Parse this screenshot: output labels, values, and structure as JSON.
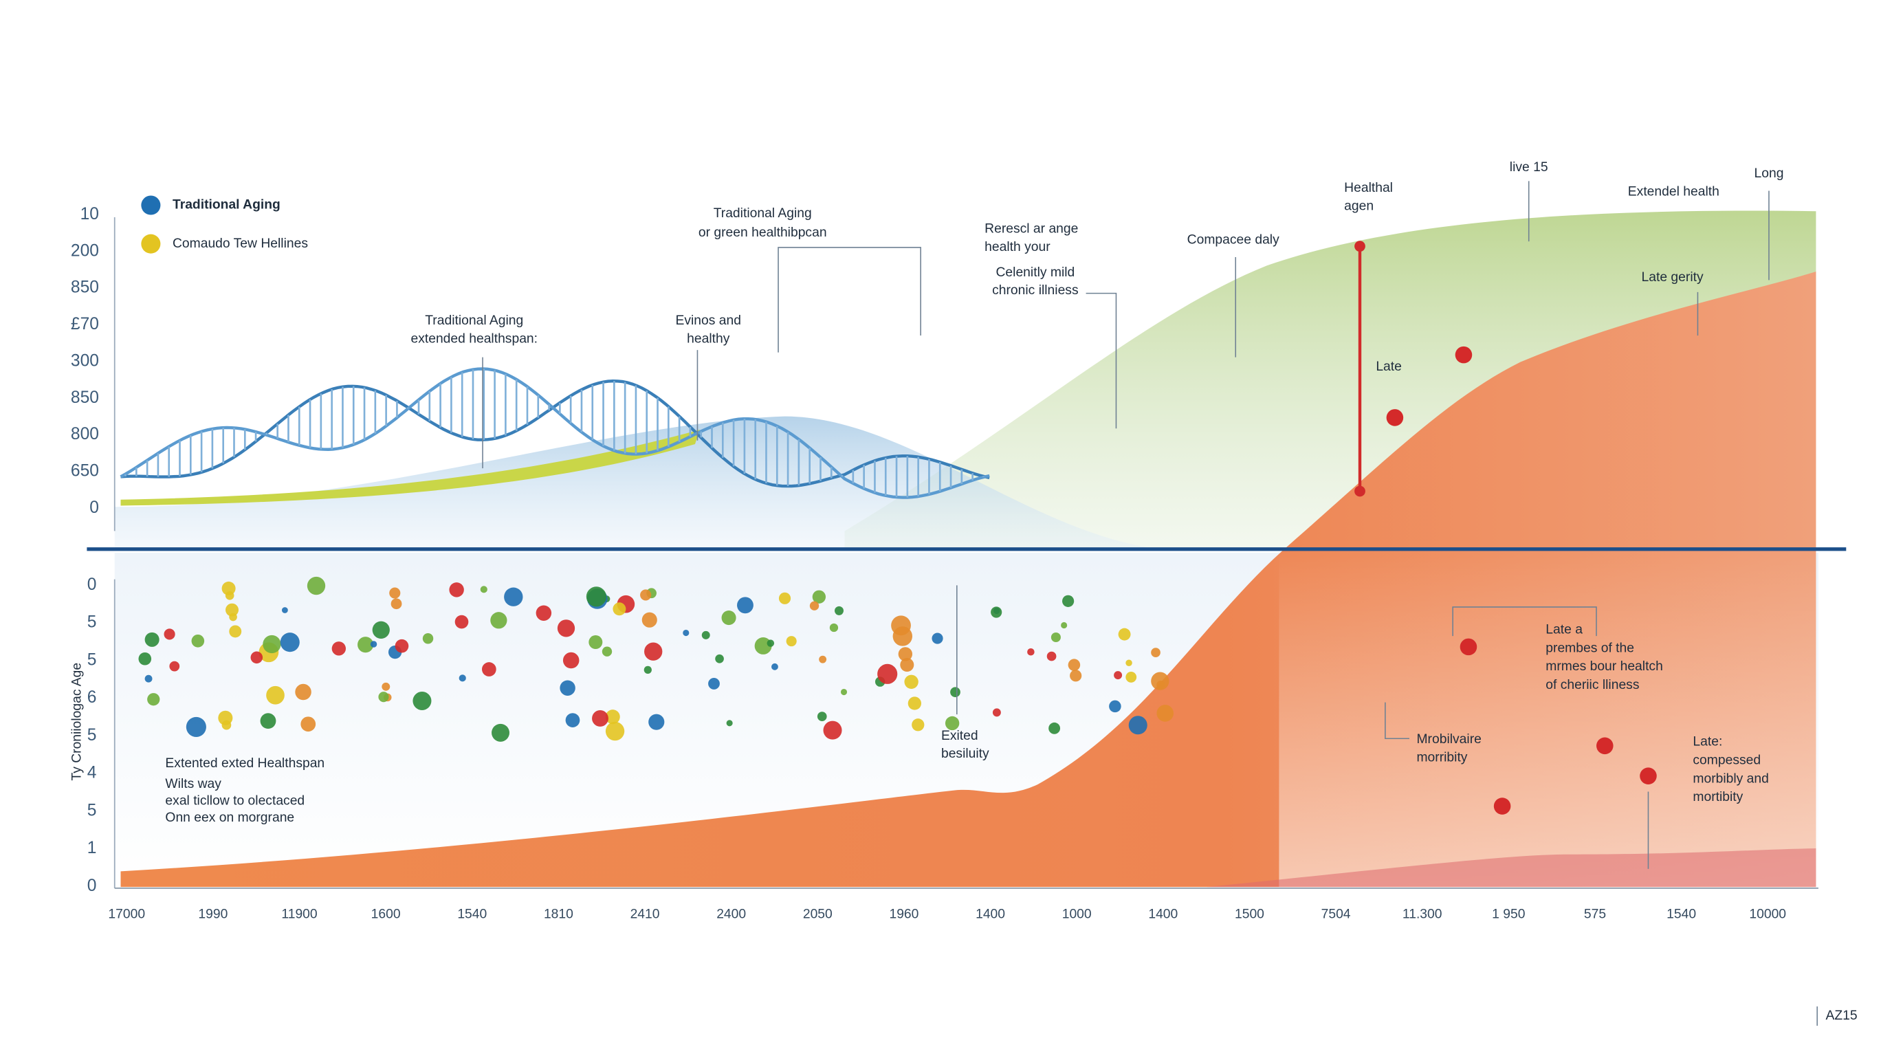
{
  "legend": [
    {
      "label": "Traditional Aging",
      "color": "#1f6fb2"
    },
    {
      "label": "Comaudo Tew Hellines",
      "color": "#e3c421"
    }
  ],
  "top_axis_ticks": [
    "10",
    "200",
    "850",
    "£70",
    "300",
    "850",
    "800",
    "650",
    "0"
  ],
  "bottom_axis_ticks": [
    "0",
    "5",
    "5",
    "6",
    "5",
    "4",
    "5",
    "1",
    "0"
  ],
  "y_axis_title": "Ty Croniiologac Age",
  "x_axis_ticks": [
    "17000",
    "1990",
    "11900",
    "1600",
    "1540",
    "1810",
    "2410",
    "2400",
    "2050",
    "1960",
    "1400",
    "1000",
    "1400",
    "1500",
    "7504",
    "11.300",
    "1 950",
    "575",
    "1540",
    "10000"
  ],
  "annotations": [
    {
      "lines": [
        "Traditional Aging",
        "or green healthibpcan"
      ]
    },
    {
      "lines": [
        "Traditional Aging",
        "extended healthspan:"
      ]
    },
    {
      "lines": [
        "Evinos and",
        "healthy"
      ]
    },
    {
      "lines": [
        "Rerescl ar ange",
        "health your"
      ]
    },
    {
      "lines": [
        "Celenitly mild",
        "chronic illniess"
      ]
    },
    {
      "lines": [
        "Compacee daly"
      ]
    },
    {
      "lines": [
        "Healthal",
        "agen"
      ]
    },
    {
      "lines": [
        "live 15"
      ]
    },
    {
      "lines": [
        "Extendel health"
      ]
    },
    {
      "lines": [
        "Long"
      ]
    },
    {
      "lines": [
        "Late gerity"
      ]
    },
    {
      "lines": [
        "Late"
      ]
    },
    {
      "lines": [
        "Extented exted Healthspan"
      ]
    },
    {
      "lines": [
        "Wilts way",
        "exal ticllow to olectaced",
        "Onn eex on morgrane"
      ]
    },
    {
      "lines": [
        "Exited",
        "besiluity"
      ]
    },
    {
      "lines": [
        "Late a",
        "prembes of the",
        "mrmes bour healtch",
        "of cheriic lliness"
      ]
    },
    {
      "lines": [
        "Mrobilvaire",
        "morribity"
      ]
    },
    {
      "lines": [
        "Late:",
        "compessed",
        "morbibly and",
        "mortibity"
      ]
    }
  ],
  "footer": "AZ15"
}
